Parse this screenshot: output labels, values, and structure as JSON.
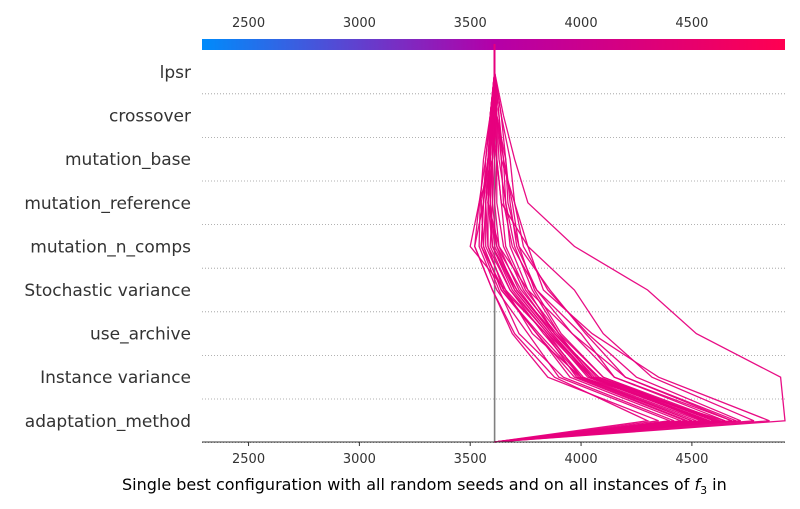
{
  "chart_data": {
    "type": "line",
    "plot_style": "shap-decision-plot",
    "xlabel_parts": [
      "Single best configuration with all random seeds and on all instances of ",
      "f",
      "3",
      " in"
    ],
    "xlim": [
      2290,
      4920
    ],
    "x_ticks": [
      "2500",
      "3000",
      "3500",
      "4000",
      "4500"
    ],
    "base_value": 3610,
    "features": [
      "lpsr",
      "crossover",
      "mutation_base",
      "mutation_reference",
      "mutation_n_comps",
      "Stochastic variance",
      "use_archive",
      "Instance variance",
      "adaptation_method"
    ],
    "colorbar": {
      "min": 2290,
      "max": 4920,
      "low_color": "#008bfb",
      "mid_color": "#b400a8",
      "high_color": "#ff0051"
    },
    "line_color": "#e7007e",
    "series": [
      {
        "values": [
          3610,
          3620,
          3600,
          3540,
          3500,
          3660,
          3780,
          4000,
          4650
        ]
      },
      {
        "values": [
          3610,
          3600,
          3590,
          3580,
          3630,
          3760,
          3960,
          4200,
          4700
        ]
      },
      {
        "values": [
          3610,
          3590,
          3620,
          3640,
          3760,
          3970,
          4100,
          4320,
          4780
        ]
      },
      {
        "values": [
          3610,
          3650,
          3700,
          3760,
          3970,
          4300,
          4520,
          4900,
          4920
        ]
      },
      {
        "values": [
          3610,
          3620,
          3640,
          3700,
          3760,
          3830,
          4050,
          4350,
          4850
        ]
      },
      {
        "values": [
          3610,
          3590,
          3570,
          3560,
          3520,
          3600,
          3700,
          3880,
          4300
        ]
      },
      {
        "values": [
          3610,
          3600,
          3580,
          3550,
          3560,
          3640,
          3800,
          3950,
          4450
        ]
      },
      {
        "values": [
          3610,
          3605,
          3590,
          3580,
          3620,
          3700,
          3860,
          4050,
          4550
        ]
      },
      {
        "values": [
          3610,
          3630,
          3650,
          3660,
          3700,
          3780,
          3900,
          4100,
          4600
        ]
      },
      {
        "values": [
          3610,
          3615,
          3600,
          3590,
          3600,
          3690,
          3850,
          4000,
          4500
        ]
      },
      {
        "values": [
          3610,
          3620,
          3660,
          3680,
          3710,
          3800,
          4000,
          4150,
          4680
        ]
      },
      {
        "values": [
          3610,
          3590,
          3560,
          3545,
          3540,
          3620,
          3760,
          3900,
          4400
        ]
      },
      {
        "values": [
          3610,
          3600,
          3590,
          3570,
          3570,
          3660,
          3840,
          3980,
          4480
        ]
      },
      {
        "values": [
          3610,
          3610,
          3620,
          3640,
          3660,
          3750,
          3900,
          4050,
          4580
        ]
      },
      {
        "values": [
          3610,
          3595,
          3580,
          3560,
          3550,
          3630,
          3720,
          3920,
          4420
        ]
      },
      {
        "values": [
          3610,
          3640,
          3680,
          3700,
          3740,
          3850,
          4030,
          4250,
          4720
        ]
      },
      {
        "values": [
          3610,
          3605,
          3610,
          3600,
          3590,
          3680,
          3830,
          4000,
          4520
        ]
      },
      {
        "values": [
          3610,
          3600,
          3600,
          3580,
          3580,
          3650,
          3800,
          3970,
          4470
        ]
      },
      {
        "values": [
          3610,
          3620,
          3630,
          3660,
          3680,
          3760,
          3880,
          4080,
          4620
        ]
      },
      {
        "values": [
          3610,
          3590,
          3570,
          3540,
          3520,
          3600,
          3690,
          3850,
          4350
        ]
      },
      {
        "values": [
          3610,
          3600,
          3590,
          3590,
          3600,
          3700,
          3860,
          4030,
          4560
        ]
      },
      {
        "values": [
          3610,
          3615,
          3620,
          3620,
          3650,
          3740,
          3880,
          4060,
          4600
        ]
      },
      {
        "values": [
          3610,
          3605,
          3600,
          3590,
          3610,
          3710,
          3870,
          4050,
          4580
        ]
      },
      {
        "values": [
          3610,
          3630,
          3640,
          3650,
          3690,
          3800,
          3960,
          4150,
          4650
        ]
      },
      {
        "values": [
          3610,
          3640,
          3660,
          3670,
          3720,
          3860,
          4020,
          4200,
          4680
        ]
      },
      {
        "values": [
          3610,
          3600,
          3580,
          3570,
          3560,
          3640,
          3810,
          3990,
          4500
        ]
      },
      {
        "values": [
          3610,
          3590,
          3580,
          3560,
          3550,
          3650,
          3840,
          4010,
          4540
        ]
      },
      {
        "values": [
          3610,
          3620,
          3620,
          3610,
          3630,
          3720,
          3870,
          4040,
          4570
        ]
      },
      {
        "values": [
          3610,
          3610,
          3600,
          3600,
          3620,
          3730,
          3890,
          4070,
          4600
        ]
      },
      {
        "values": [
          3610,
          3620,
          3650,
          3690,
          3720,
          3790,
          3910,
          4100,
          4630
        ]
      },
      {
        "values": [
          3610,
          3600,
          3590,
          3570,
          3580,
          3680,
          3850,
          4040,
          4560
        ]
      },
      {
        "values": [
          3610,
          3595,
          3585,
          3580,
          3600,
          3710,
          3880,
          4080,
          4610
        ]
      }
    ]
  }
}
